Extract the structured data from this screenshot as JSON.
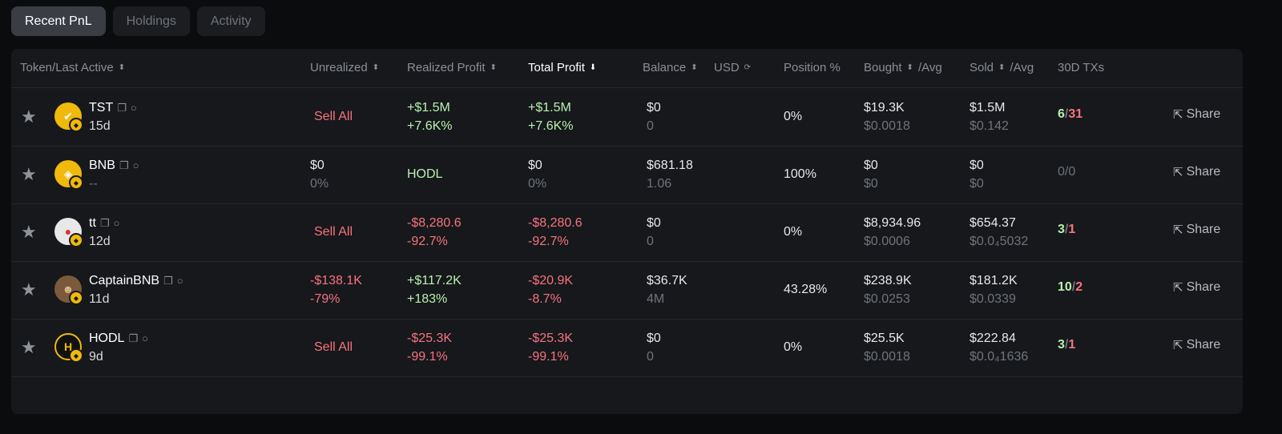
{
  "tabs": [
    {
      "label": "Recent PnL",
      "active": true
    },
    {
      "label": "Holdings",
      "active": false
    },
    {
      "label": "Activity",
      "active": false
    }
  ],
  "headers": {
    "token": "Token/Last Active",
    "unrealized": "Unrealized",
    "realized": "Realized Profit",
    "total": "Total Profit",
    "balance": "Balance",
    "usd": "USD",
    "position": "Position %",
    "bought": "Bought",
    "bought_suffix": "/Avg",
    "sold": "Sold",
    "sold_suffix": "/Avg",
    "txs": "30D TXs"
  },
  "rows": [
    {
      "name": "TST",
      "age": "15d",
      "avatar_color": "#f0b90b",
      "unrealized": "Sell All",
      "unrealized_sub": "",
      "realized": "+$1.5M",
      "realized_sub": "+7.6K%",
      "total": "+$1.5M",
      "total_sub": "+7.6K%",
      "balance": "$0",
      "balance_sub": "0",
      "position": "0%",
      "bought": "$19.3K",
      "bought_avg": "$0.0018",
      "sold": "$1.5M",
      "sold_avg": "$0.142",
      "tx_buy": "6",
      "tx_sep": "/",
      "tx_sell": "31",
      "share": "Share"
    },
    {
      "name": "BNB",
      "age": "--",
      "avatar_color": "#f0b90b",
      "unrealized": "$0",
      "unrealized_sub": "0%",
      "realized": "HODL",
      "realized_sub": "",
      "total": "$0",
      "total_sub": "0%",
      "balance": "$681.18",
      "balance_sub": "1.06",
      "position": "100%",
      "bought": "$0",
      "bought_avg": "$0",
      "sold": "$0",
      "sold_avg": "$0",
      "tx_buy": "0",
      "tx_sep": "/",
      "tx_sell": "0",
      "share": "Share"
    },
    {
      "name": "tt",
      "age": "12d",
      "avatar_color": "#e8e8e8",
      "unrealized": "Sell All",
      "unrealized_sub": "",
      "realized": "-$8,280.6",
      "realized_sub": "-92.7%",
      "total": "-$8,280.6",
      "total_sub": "-92.7%",
      "balance": "$0",
      "balance_sub": "0",
      "position": "0%",
      "bought": "$8,934.96",
      "bought_avg": "$0.0006",
      "sold": "$654.37",
      "sold_avg": "$0.0₄5032",
      "tx_buy": "3",
      "tx_sep": "/",
      "tx_sell": "1",
      "share": "Share"
    },
    {
      "name": "CaptainBNB",
      "age": "11d",
      "avatar_color": "#7a5a3a",
      "unrealized": "-$138.1K",
      "unrealized_sub": "-79%",
      "realized": "+$117.2K",
      "realized_sub": "+183%",
      "total": "-$20.9K",
      "total_sub": "-8.7%",
      "balance": "$36.7K",
      "balance_sub": "4M",
      "position": "43.28%",
      "bought": "$238.9K",
      "bought_avg": "$0.0253",
      "sold": "$181.2K",
      "sold_avg": "$0.0339",
      "tx_buy": "10",
      "tx_sep": "/",
      "tx_sell": "2",
      "share": "Share"
    },
    {
      "name": "HODL",
      "age": "9d",
      "avatar_color": "#111111",
      "unrealized": "Sell All",
      "unrealized_sub": "",
      "realized": "-$25.3K",
      "realized_sub": "-99.1%",
      "total": "-$25.3K",
      "total_sub": "-99.1%",
      "balance": "$0",
      "balance_sub": "0",
      "position": "0%",
      "bought": "$25.5K",
      "bought_avg": "$0.0018",
      "sold": "$222.84",
      "sold_avg": "$0.0₄1636",
      "tx_buy": "3",
      "tx_sep": "/",
      "tx_sell": "1",
      "share": "Share"
    }
  ]
}
